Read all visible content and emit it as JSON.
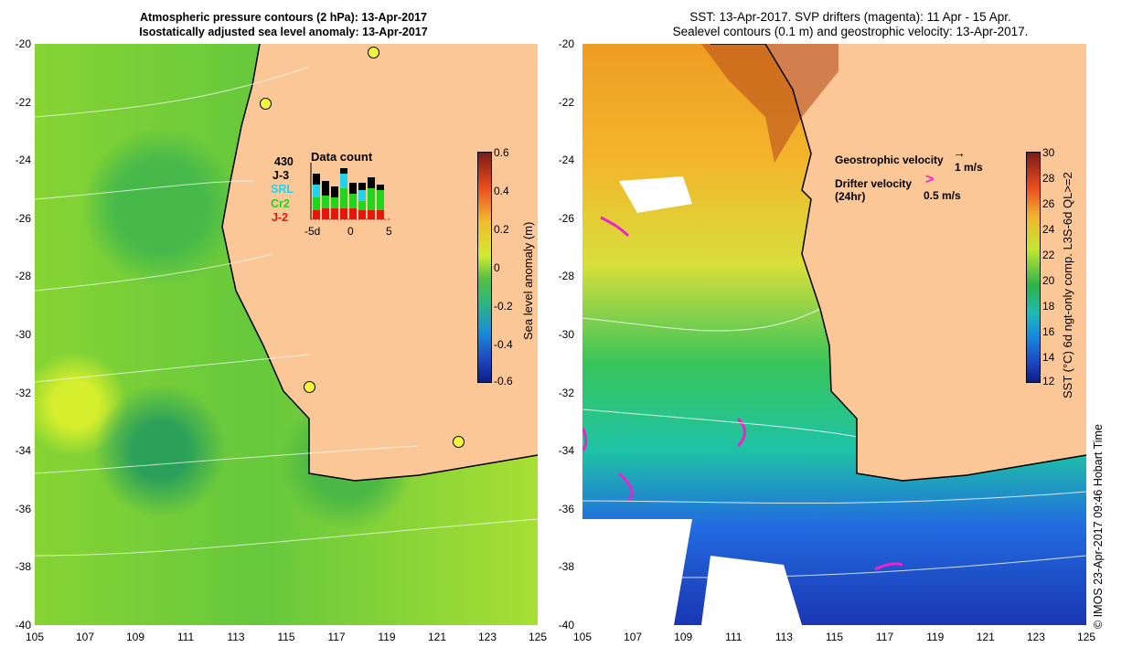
{
  "left_panel": {
    "title_line1": "Atmospheric pressure contours (2 hPa): 13-Apr-2017",
    "title_line2": "Isostatically adjusted sea level anomaly: 13-Apr-2017",
    "colorbar_label": "Sea level anomaly (m)",
    "colorbar_ticks": [
      "0.6",
      "0.4",
      "0.2",
      "0",
      "-0.2",
      "-0.4",
      "-0.6"
    ],
    "data_count": {
      "title": "Data count",
      "total": "430",
      "missions": [
        {
          "label": "J-3",
          "color": "#000000"
        },
        {
          "label": "SRL",
          "color": "#22d3f0"
        },
        {
          "label": "Cr2",
          "color": "#1fd61f"
        },
        {
          "label": "J-2",
          "color": "#e4160e"
        }
      ],
      "x_ticks": [
        "-5d",
        "0",
        "5"
      ]
    }
  },
  "right_panel": {
    "title_line1": "SST: 13-Apr-2017. SVP drifters (magenta): 11 Apr - 15 Apr.",
    "title_line2": "Sealevel contours (0.1 m) and geostrophic velocity: 13-Apr-2017.",
    "geo_velocity_label": "Geostrophic velocity",
    "geo_velocity_scale": "1 m/s",
    "drifter_label_line1": "Drifter velocity",
    "drifter_label_line2": "(24hr)",
    "drifter_scale": "0.5 m/s",
    "colorbar_label": "SST (°C) 6d ngt-only comp. L3S-6d QL>=2",
    "colorbar_ticks": [
      "30",
      "28",
      "26",
      "24",
      "22",
      "20",
      "18",
      "16",
      "14",
      "12"
    ]
  },
  "axes": {
    "x_ticks": [
      "105",
      "107",
      "109",
      "111",
      "113",
      "115",
      "117",
      "119",
      "121",
      "123",
      "125"
    ],
    "y_ticks": [
      "-20",
      "-22",
      "-24",
      "-26",
      "-28",
      "-30",
      "-32",
      "-34",
      "-36",
      "-38",
      "-40"
    ]
  },
  "credit": "© IMOS 23-Apr-2017 09:46 Hobart Time",
  "colors": {
    "land": "#fbc797",
    "drifter": "#ee22cc",
    "contour": "#ffffff"
  }
}
